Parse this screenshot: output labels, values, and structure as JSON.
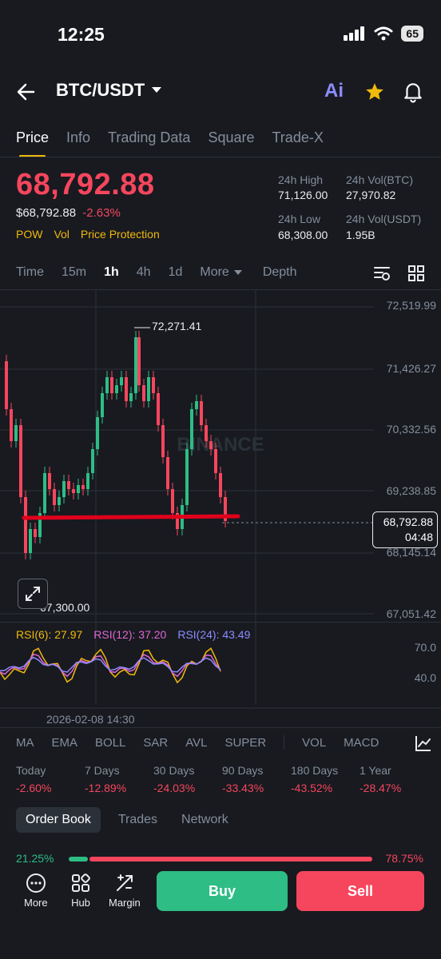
{
  "status": {
    "time": "12:25",
    "battery": "65"
  },
  "header": {
    "pair": "BTC/USDT",
    "ai_label": "Ai"
  },
  "tabs": [
    {
      "label": "Price",
      "active": true
    },
    {
      "label": "Info"
    },
    {
      "label": "Trading Data"
    },
    {
      "label": "Square"
    },
    {
      "label": "Trade-X"
    }
  ],
  "price": {
    "last": "68,792.88",
    "usd": "$68,792.88",
    "change": "-2.63%",
    "tags": [
      "POW",
      "Vol",
      "Price Protection"
    ]
  },
  "stats": {
    "high_label": "24h High",
    "high": "71,126.00",
    "vol_btc_label": "24h Vol(BTC)",
    "vol_btc": "27,970.82",
    "low_label": "24h Low",
    "low": "68,308.00",
    "vol_usdt_label": "24h Vol(USDT)",
    "vol_usdt": "1.95B"
  },
  "intervals": {
    "items": [
      "Time",
      "15m",
      "1h",
      "4h",
      "1d",
      "More"
    ],
    "active": "1h",
    "depth": "Depth"
  },
  "chart": {
    "y_ticks": [
      "72,519.99",
      "71,426.27",
      "70,332.56",
      "69,238.85",
      "68,145.14",
      "67,051.42"
    ],
    "high_marker": "72,271.41",
    "low_marker": "67,300.00",
    "current_price": "68,792.88",
    "countdown": "04:48",
    "watermark": "BINANCE",
    "timestamp": "2026-02-08 14:30",
    "colors": {
      "up": "#2ebd85",
      "down": "#f6465d",
      "hline": "#e0001b"
    }
  },
  "rsi": {
    "rsi6": "RSI(6): 27.97",
    "rsi12": "RSI(12): 37.20",
    "rsi24": "RSI(24): 43.49",
    "upper": "70.0",
    "lower": "40.0"
  },
  "indicators": [
    "MA",
    "EMA",
    "BOLL",
    "SAR",
    "AVL",
    "SUPER",
    "VOL",
    "MACD"
  ],
  "performance": [
    {
      "label": "Today",
      "value": "-2.60%"
    },
    {
      "label": "7 Days",
      "value": "-12.89%"
    },
    {
      "label": "30 Days",
      "value": "-24.03%"
    },
    {
      "label": "90 Days",
      "value": "-33.43%"
    },
    {
      "label": "180 Days",
      "value": "-43.52%"
    },
    {
      "label": "1 Year",
      "value": "-28.47%"
    }
  ],
  "orderbook": {
    "tabs": [
      "Order Book",
      "Trades",
      "Network"
    ],
    "bid_pct": "21.25%",
    "ask_pct": "78.75%"
  },
  "bottom": {
    "more": "More",
    "hub": "Hub",
    "margin": "Margin",
    "buy": "Buy",
    "sell": "Sell"
  }
}
